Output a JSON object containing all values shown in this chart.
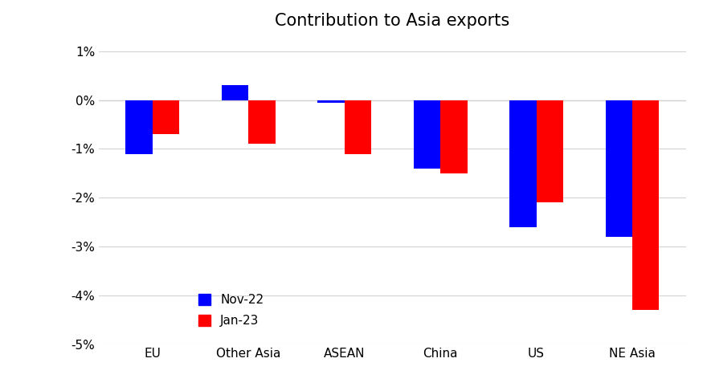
{
  "categories": [
    "EU",
    "Other Asia",
    "ASEAN",
    "China",
    "US",
    "NE Asia"
  ],
  "nov22": [
    -1.1,
    0.3,
    -0.05,
    -1.4,
    -2.6,
    -2.8
  ],
  "jan23": [
    -0.7,
    -0.9,
    -1.1,
    -1.5,
    -2.1,
    -4.3
  ],
  "nov22_color": "#0000ff",
  "jan23_color": "#ff0000",
  "title": "Contribution to Asia exports",
  "title_fontsize": 15,
  "ylim": [
    -5.0,
    1.25
  ],
  "yticks": [
    1.0,
    0.0,
    -1.0,
    -2.0,
    -3.0,
    -4.0,
    -5.0
  ],
  "ytick_labels": [
    "1%",
    "0%",
    "-1%",
    "-2%",
    "-3%",
    "-4%",
    "-5%"
  ],
  "legend_nov22": "Nov-22",
  "legend_jan23": "Jan-23",
  "bar_width": 0.28
}
